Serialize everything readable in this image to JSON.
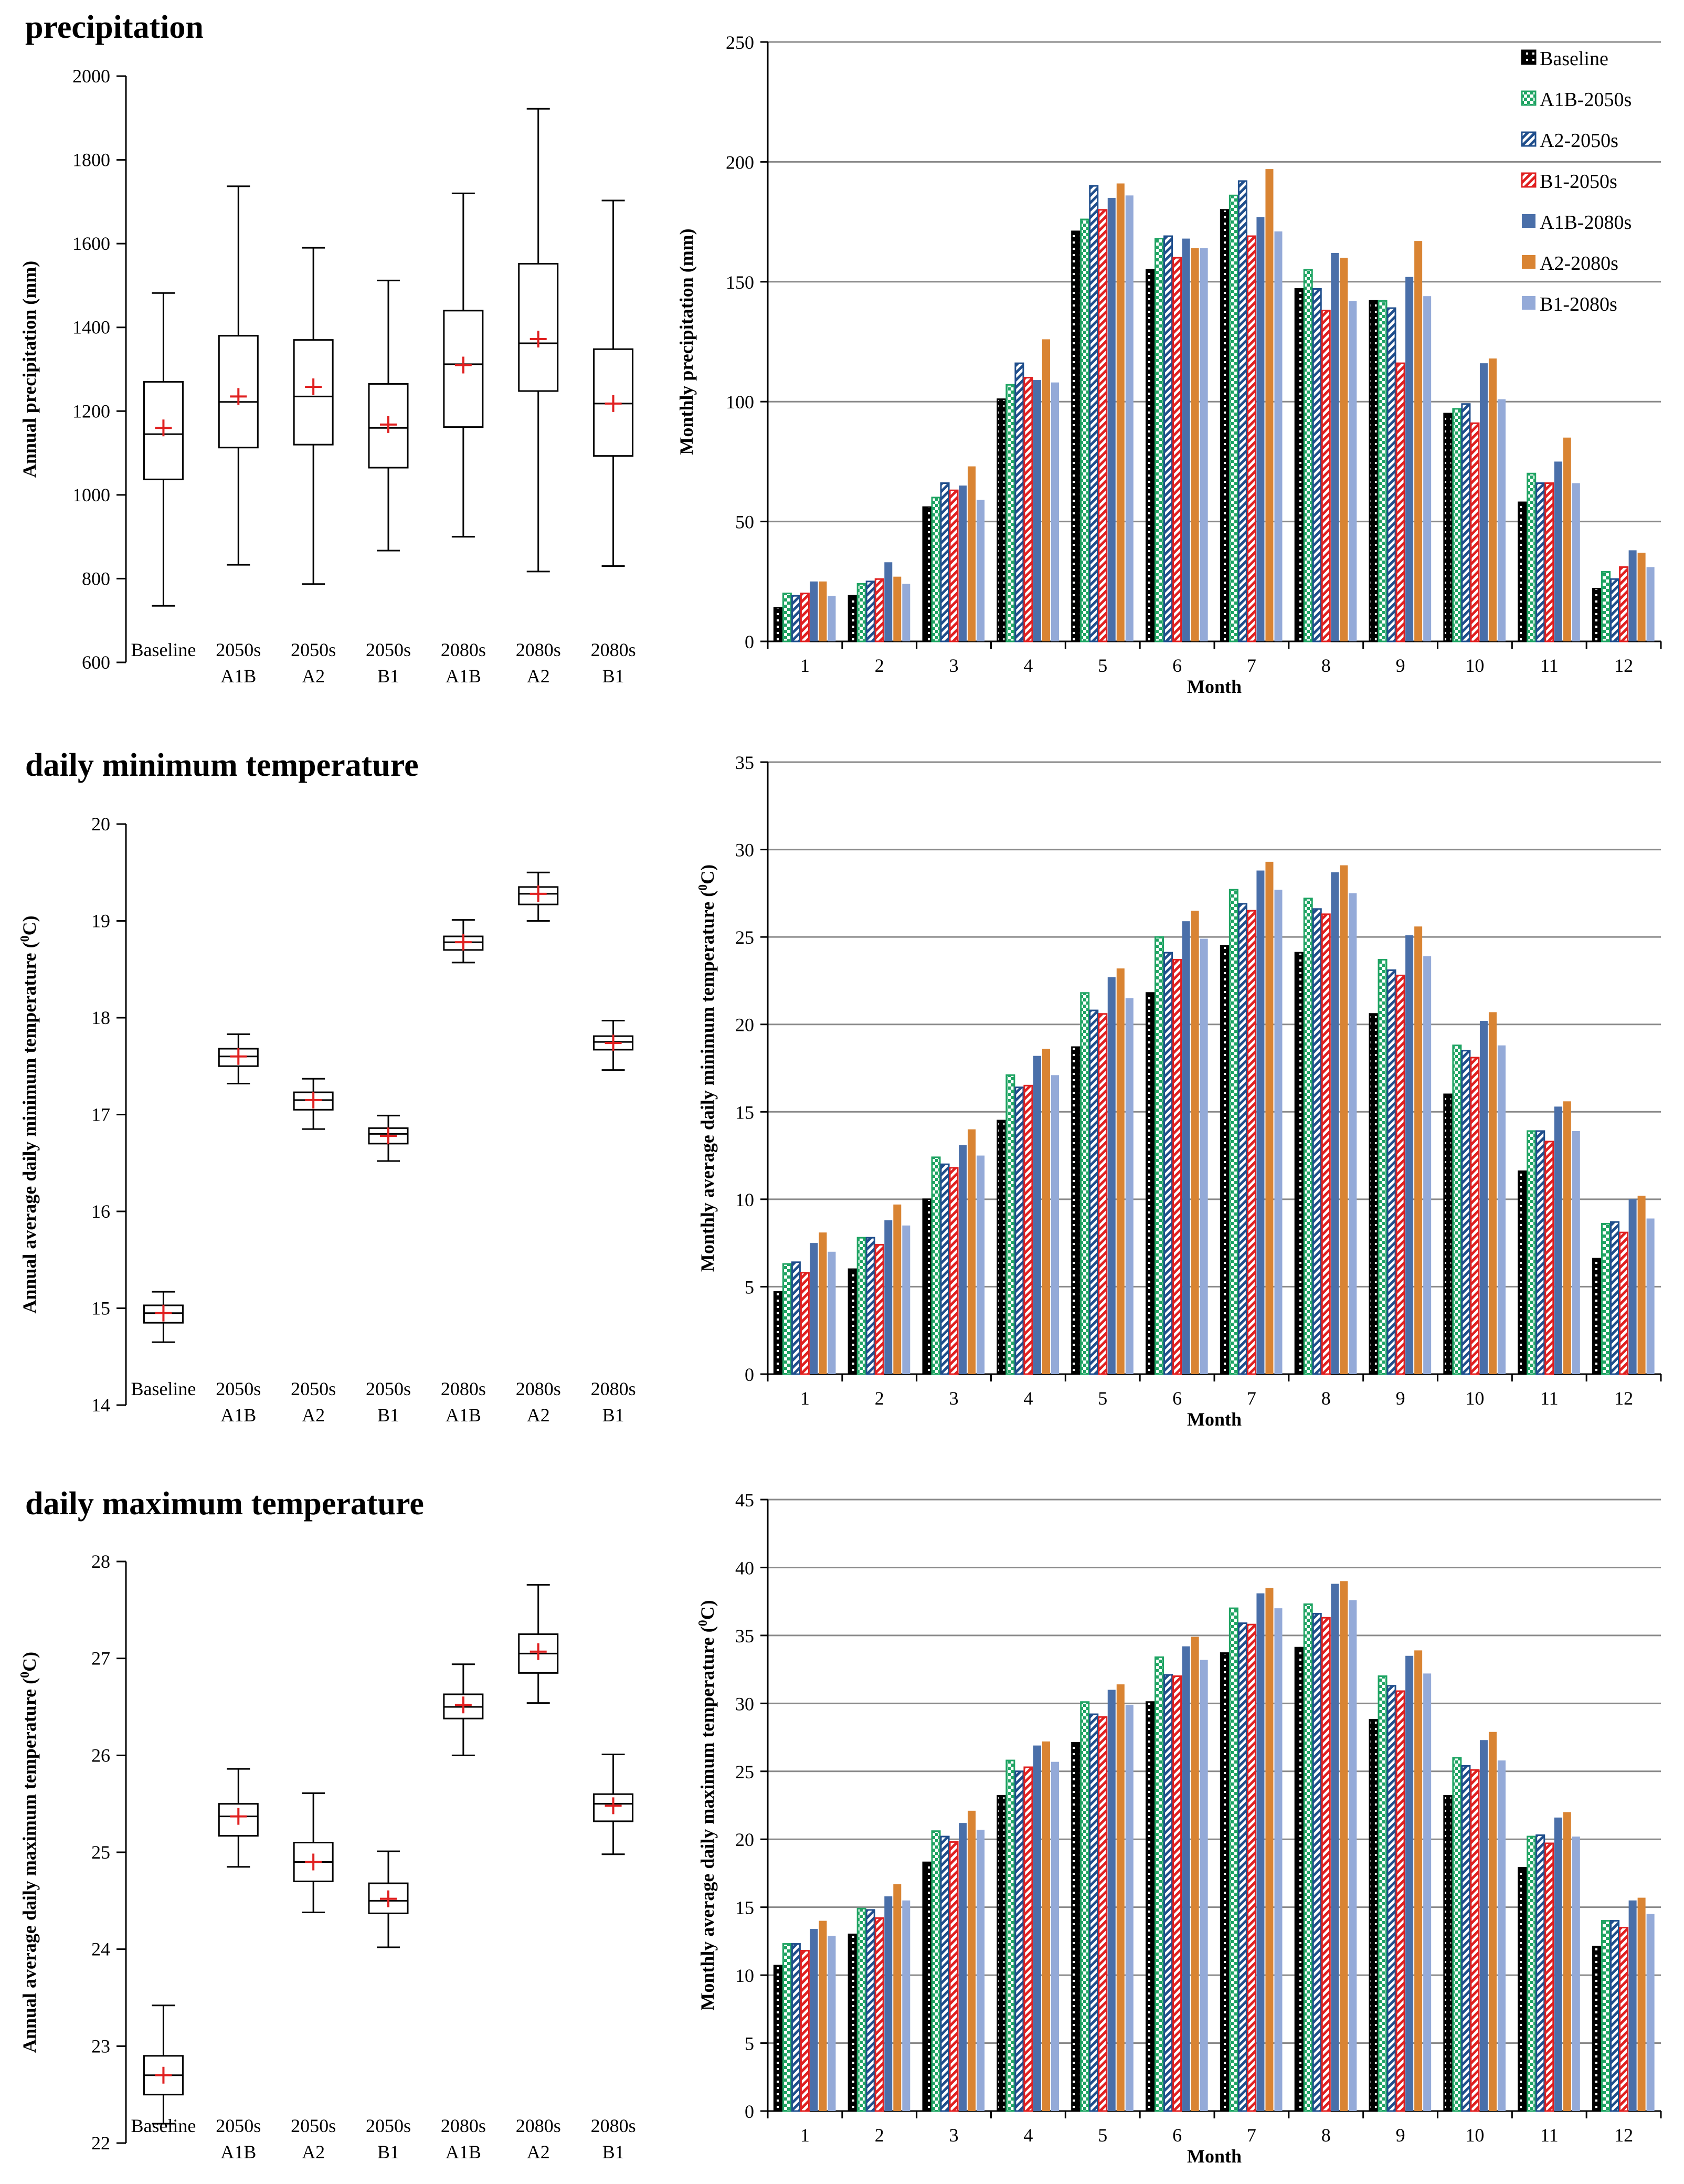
{
  "chart_data": [
    {
      "type": "box",
      "panel_title": "precipitation",
      "ylabel": "Annual precipitation (mm)",
      "ylim": [
        600,
        2000
      ],
      "yticks": [
        600,
        800,
        1000,
        1200,
        1400,
        1600,
        1800,
        2000
      ],
      "categories": [
        {
          "line1": "Baseline",
          "line2": ""
        },
        {
          "line1": "2050s",
          "line2": "A1B"
        },
        {
          "line1": "2050s",
          "line2": "A2"
        },
        {
          "line1": "2050s",
          "line2": "B1"
        },
        {
          "line1": "2080s",
          "line2": "A1B"
        },
        {
          "line1": "2080s",
          "line2": "A2"
        },
        {
          "line1": "2080s",
          "line2": "B1"
        }
      ],
      "boxes": [
        {
          "min": 735,
          "q1": 1037,
          "median": 1145,
          "q3": 1270,
          "max": 1482,
          "mean": 1160
        },
        {
          "min": 833,
          "q1": 1113,
          "median": 1222,
          "q3": 1380,
          "max": 1737,
          "mean": 1235
        },
        {
          "min": 787,
          "q1": 1120,
          "median": 1235,
          "q3": 1370,
          "max": 1590,
          "mean": 1258
        },
        {
          "min": 867,
          "q1": 1065,
          "median": 1160,
          "q3": 1265,
          "max": 1512,
          "mean": 1168
        },
        {
          "min": 900,
          "q1": 1162,
          "median": 1312,
          "q3": 1440,
          "max": 1720,
          "mean": 1310
        },
        {
          "min": 817,
          "q1": 1248,
          "median": 1362,
          "q3": 1552,
          "max": 1922,
          "mean": 1372
        },
        {
          "min": 830,
          "q1": 1093,
          "median": 1218,
          "q3": 1348,
          "max": 1703,
          "mean": 1218
        }
      ]
    },
    {
      "type": "bar",
      "ylabel": "Monthly precipitation (mm)",
      "xlabel": "Month",
      "ylim": [
        0,
        250
      ],
      "yticks": [
        0,
        50,
        100,
        150,
        200,
        250
      ],
      "categories": [
        "1",
        "2",
        "3",
        "4",
        "5",
        "6",
        "7",
        "8",
        "9",
        "10",
        "11",
        "12"
      ],
      "series": [
        {
          "name": "Baseline",
          "values": [
            14,
            19,
            56,
            101,
            171,
            155,
            180,
            147,
            142,
            95,
            58,
            22
          ]
        },
        {
          "name": "A1B-2050s",
          "values": [
            20,
            24,
            60,
            107,
            176,
            168,
            186,
            155,
            142,
            97,
            70,
            29
          ]
        },
        {
          "name": "A2-2050s",
          "values": [
            19,
            25,
            66,
            116,
            190,
            169,
            192,
            147,
            139,
            99,
            66,
            26
          ]
        },
        {
          "name": "B1-2050s",
          "values": [
            20,
            26,
            63,
            110,
            180,
            160,
            169,
            138,
            116,
            91,
            66,
            31
          ]
        },
        {
          "name": "A1B-2080s",
          "values": [
            25,
            33,
            65,
            109,
            185,
            168,
            177,
            162,
            152,
            116,
            75,
            38
          ]
        },
        {
          "name": "A2-2080s",
          "values": [
            25,
            27,
            73,
            126,
            191,
            164,
            197,
            160,
            167,
            118,
            85,
            37
          ]
        },
        {
          "name": "B1-2080s",
          "values": [
            19,
            24,
            59,
            108,
            186,
            164,
            171,
            142,
            144,
            101,
            66,
            31
          ]
        }
      ]
    },
    {
      "type": "box",
      "panel_title": "daily minimum temperature",
      "ylabel": "Annual average daily minimum temperature (",
      "ylabel_sup": "0",
      "ylabel_end": "C)",
      "ylim": [
        14,
        20
      ],
      "yticks": [
        14,
        15,
        16,
        17,
        18,
        19,
        20
      ],
      "categories": [
        {
          "line1": "Baseline",
          "line2": ""
        },
        {
          "line1": "2050s",
          "line2": "A1B"
        },
        {
          "line1": "2050s",
          "line2": "A2"
        },
        {
          "line1": "2050s",
          "line2": "B1"
        },
        {
          "line1": "2080s",
          "line2": "A1B"
        },
        {
          "line1": "2080s",
          "line2": "A2"
        },
        {
          "line1": "2080s",
          "line2": "B1"
        }
      ],
      "boxes": [
        {
          "min": 14.65,
          "q1": 14.85,
          "median": 14.95,
          "q3": 15.03,
          "max": 15.17,
          "mean": 14.95
        },
        {
          "min": 17.32,
          "q1": 17.5,
          "median": 17.6,
          "q3": 17.68,
          "max": 17.83,
          "mean": 17.6
        },
        {
          "min": 16.85,
          "q1": 17.05,
          "median": 17.15,
          "q3": 17.23,
          "max": 17.37,
          "mean": 17.15
        },
        {
          "min": 16.52,
          "q1": 16.7,
          "median": 16.8,
          "q3": 16.86,
          "max": 16.99,
          "mean": 16.78
        },
        {
          "min": 18.57,
          "q1": 18.7,
          "median": 18.78,
          "q3": 18.84,
          "max": 19.01,
          "mean": 18.78
        },
        {
          "min": 19.0,
          "q1": 19.17,
          "median": 19.28,
          "q3": 19.35,
          "max": 19.5,
          "mean": 19.28
        },
        {
          "min": 17.46,
          "q1": 17.67,
          "median": 17.75,
          "q3": 17.81,
          "max": 17.97,
          "mean": 17.74
        }
      ]
    },
    {
      "type": "bar",
      "ylabel": "Monthly average daily minimum temperature (",
      "ylabel_sup": "0",
      "ylabel_end": "C)",
      "xlabel": "Month",
      "ylim": [
        0,
        35
      ],
      "yticks": [
        0,
        5,
        10,
        15,
        20,
        25,
        30,
        35
      ],
      "categories": [
        "1",
        "2",
        "3",
        "4",
        "5",
        "6",
        "7",
        "8",
        "9",
        "10",
        "11",
        "12"
      ],
      "series": [
        {
          "name": "Baseline",
          "values": [
            4.7,
            6.0,
            10.0,
            14.5,
            18.7,
            21.8,
            24.5,
            24.1,
            20.6,
            16.0,
            11.6,
            6.6
          ]
        },
        {
          "name": "A1B-2050s",
          "values": [
            6.3,
            7.8,
            12.4,
            17.1,
            21.8,
            25.0,
            27.7,
            27.2,
            23.7,
            18.8,
            13.9,
            8.6
          ]
        },
        {
          "name": "A2-2050s",
          "values": [
            6.4,
            7.8,
            12.0,
            16.4,
            20.8,
            24.1,
            26.9,
            26.6,
            23.1,
            18.5,
            13.9,
            8.7
          ]
        },
        {
          "name": "B1-2050s",
          "values": [
            5.8,
            7.4,
            11.8,
            16.5,
            20.6,
            23.7,
            26.5,
            26.3,
            22.8,
            18.1,
            13.3,
            8.1
          ]
        },
        {
          "name": "A1B-2080s",
          "values": [
            7.5,
            8.8,
            13.1,
            18.2,
            22.7,
            25.9,
            28.8,
            28.7,
            25.1,
            20.2,
            15.3,
            10.0
          ]
        },
        {
          "name": "A2-2080s",
          "values": [
            8.1,
            9.7,
            14.0,
            18.6,
            23.2,
            26.5,
            29.3,
            29.1,
            25.6,
            20.7,
            15.6,
            10.2
          ]
        },
        {
          "name": "B1-2080s",
          "values": [
            7.0,
            8.5,
            12.5,
            17.1,
            21.5,
            24.9,
            27.7,
            27.5,
            23.9,
            18.8,
            13.9,
            8.9
          ]
        }
      ]
    },
    {
      "type": "box",
      "panel_title": "daily maximum temperature",
      "ylabel": "Annual average daily maximum temperature (",
      "ylabel_sup": "0",
      "ylabel_end": "C)",
      "ylim": [
        22,
        28
      ],
      "yticks": [
        22,
        23,
        24,
        25,
        26,
        27,
        28
      ],
      "categories": [
        {
          "line1": "Baseline",
          "line2": ""
        },
        {
          "line1": "2050s",
          "line2": "A1B"
        },
        {
          "line1": "2050s",
          "line2": "A2"
        },
        {
          "line1": "2050s",
          "line2": "B1"
        },
        {
          "line1": "2080s",
          "line2": "A1B"
        },
        {
          "line1": "2080s",
          "line2": "A2"
        },
        {
          "line1": "2080s",
          "line2": "B1"
        }
      ],
      "boxes": [
        {
          "min": 22.2,
          "q1": 22.5,
          "median": 22.7,
          "q3": 22.9,
          "max": 23.42,
          "mean": 22.7
        },
        {
          "min": 24.85,
          "q1": 25.17,
          "median": 25.37,
          "q3": 25.5,
          "max": 25.86,
          "mean": 25.37
        },
        {
          "min": 24.38,
          "q1": 24.7,
          "median": 24.9,
          "q3": 25.1,
          "max": 25.61,
          "mean": 24.9
        },
        {
          "min": 24.02,
          "q1": 24.37,
          "median": 24.5,
          "q3": 24.68,
          "max": 25.01,
          "mean": 24.52
        },
        {
          "min": 26.0,
          "q1": 26.38,
          "median": 26.5,
          "q3": 26.63,
          "max": 26.94,
          "mean": 26.52
        },
        {
          "min": 26.54,
          "q1": 26.85,
          "median": 27.05,
          "q3": 27.25,
          "max": 27.76,
          "mean": 27.07
        },
        {
          "min": 24.98,
          "q1": 25.32,
          "median": 25.5,
          "q3": 25.6,
          "max": 26.01,
          "mean": 25.48
        }
      ]
    },
    {
      "type": "bar",
      "ylabel": "Monthly average daily maximum temperature (",
      "ylabel_sup": "0",
      "ylabel_end": "C)",
      "xlabel": "Month",
      "ylim": [
        0,
        45
      ],
      "yticks": [
        0,
        5,
        10,
        15,
        20,
        25,
        30,
        35,
        40,
        45
      ],
      "categories": [
        "1",
        "2",
        "3",
        "4",
        "5",
        "6",
        "7",
        "8",
        "9",
        "10",
        "11",
        "12"
      ],
      "series": [
        {
          "name": "Baseline",
          "values": [
            10.7,
            13.0,
            18.3,
            23.2,
            27.1,
            30.1,
            33.7,
            34.1,
            28.8,
            23.2,
            17.9,
            12.1
          ]
        },
        {
          "name": "A1B-2050s",
          "values": [
            12.3,
            14.9,
            20.6,
            25.8,
            30.1,
            33.4,
            37.0,
            37.3,
            32.0,
            26.0,
            20.2,
            14.0
          ]
        },
        {
          "name": "A2-2050s",
          "values": [
            12.3,
            14.8,
            20.2,
            25.0,
            29.2,
            32.1,
            35.9,
            36.6,
            31.3,
            25.4,
            20.3,
            14.0
          ]
        },
        {
          "name": "B1-2050s",
          "values": [
            11.8,
            14.2,
            19.8,
            25.3,
            29.0,
            32.0,
            35.8,
            36.3,
            30.9,
            25.1,
            19.7,
            13.5
          ]
        },
        {
          "name": "A1B-2080s",
          "values": [
            13.4,
            15.8,
            21.2,
            26.9,
            31.0,
            34.2,
            38.1,
            38.8,
            33.5,
            27.3,
            21.6,
            15.5
          ]
        },
        {
          "name": "A2-2080s",
          "values": [
            14.0,
            16.7,
            22.1,
            27.2,
            31.4,
            34.9,
            38.5,
            39.0,
            33.9,
            27.9,
            22.0,
            15.7
          ]
        },
        {
          "name": "B1-2080s",
          "values": [
            12.9,
            15.5,
            20.7,
            25.7,
            29.9,
            33.2,
            37.0,
            37.6,
            32.2,
            25.8,
            20.2,
            14.5
          ]
        }
      ]
    }
  ],
  "style": {
    "series_colors": [
      "#000000",
      "#1fa463",
      "#1f4e8c",
      "#e02020",
      "#4a6fa9",
      "#d98433",
      "#94aad8"
    ],
    "mean_marker_color": "#e02020",
    "gridline_color": "#8a8a8a"
  }
}
